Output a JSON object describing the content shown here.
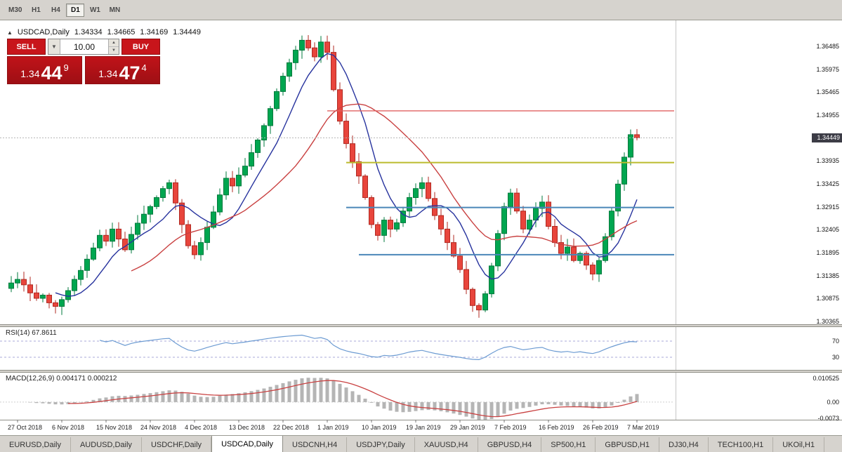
{
  "colors": {
    "up": "#00a650",
    "up_edge": "#007a3c",
    "down": "#e8453c",
    "down_edge": "#b02a22",
    "ma_fast": "#27339e",
    "ma_slow": "#c94141",
    "line_red": "#e06060",
    "line_yellow": "#bcbc2e",
    "line_blue": "#4a86b8",
    "rsi_line": "#6c9bd2",
    "level_dash": "#a8a8d8",
    "macd_hist": "#b5b5b5",
    "macd_signal": "#c94141",
    "bid_dash": "#b4b4b4",
    "tick": "#777777"
  },
  "toolbar": {
    "timeframes": [
      "M30",
      "H1",
      "H4",
      "D1",
      "W1",
      "MN"
    ],
    "active": "D1"
  },
  "quote_panel": {
    "collapse_icon": "▲",
    "symbol_title": "USDCAD,Daily",
    "ohlc": {
      "open": "1.34334",
      "high": "1.34665",
      "low": "1.34169",
      "close": "1.34449"
    },
    "sell_label": "SELL",
    "buy_label": "BUY",
    "volume_value": "10.00",
    "volume_dropdown_icon": "▼",
    "volume_up_icon": "▲",
    "volume_down_icon": "▼",
    "sell_price": {
      "base": "1.34",
      "pips": "44",
      "pip_sup": "9"
    },
    "buy_price": {
      "base": "1.34",
      "pips": "47",
      "pip_sup": "4"
    }
  },
  "tabs": {
    "items": [
      "EURUSD,Daily",
      "AUDUSD,Daily",
      "USDCHF,Daily",
      "USDCAD,Daily",
      "USDCNH,H4",
      "USDJPY,Daily",
      "XAUUSD,H4",
      "GBPUSD,H4",
      "SP500,H1",
      "GBPUSD,H1",
      "DJ30,H4",
      "TECH100,H1",
      "UKOil,H1"
    ],
    "active": "USDCAD,Daily"
  },
  "chart_data": {
    "type": "candlestick",
    "symbol": "USDCAD",
    "timeframe": "Daily",
    "ohlc_current": {
      "open": 1.34334,
      "high": 1.34665,
      "low": 1.34169,
      "close": 1.34449
    },
    "first_open": 1.311,
    "closes": [
      1.3122,
      1.313,
      1.3118,
      1.31,
      1.3088,
      1.3095,
      1.3078,
      1.307,
      1.3085,
      1.3105,
      1.313,
      1.315,
      1.3175,
      1.32,
      1.3228,
      1.3215,
      1.3242,
      1.322,
      1.3196,
      1.323,
      1.3255,
      1.3275,
      1.3292,
      1.3312,
      1.3332,
      1.3345,
      1.33,
      1.3252,
      1.3205,
      1.3185,
      1.3212,
      1.3246,
      1.328,
      1.3318,
      1.3355,
      1.3338,
      1.3362,
      1.3382,
      1.3412,
      1.344,
      1.3472,
      1.351,
      1.3548,
      1.3582,
      1.3612,
      1.364,
      1.3662,
      1.3645,
      1.3625,
      1.3658,
      1.3635,
      1.3552,
      1.3482,
      1.3432,
      1.3392,
      1.336,
      1.3312,
      1.3252,
      1.3228,
      1.3262,
      1.3242,
      1.3256,
      1.3282,
      1.3312,
      1.3332,
      1.3345,
      1.331,
      1.3272,
      1.3242,
      1.3212,
      1.3182,
      1.3152,
      1.3108,
      1.3072,
      1.3062,
      1.3098,
      1.316,
      1.3232,
      1.3292,
      1.3322,
      1.3282,
      1.3242,
      1.3262,
      1.3288,
      1.3302,
      1.3248,
      1.3212,
      1.3188,
      1.3202,
      1.3172,
      1.3188,
      1.3162,
      1.3142,
      1.3172,
      1.3225,
      1.3282,
      1.3342,
      1.3402,
      1.3452,
      1.34449
    ],
    "ma": [
      {
        "period": 8,
        "color_key": "ma_fast"
      },
      {
        "period": 20,
        "color_key": "ma_slow"
      }
    ],
    "hlines": [
      {
        "price": 1.3505,
        "from_i": 50,
        "color_key": "line_red",
        "w": 1.4
      },
      {
        "price": 1.339,
        "from_i": 53,
        "color_key": "line_yellow",
        "w": 2
      },
      {
        "price": 1.329,
        "from_i": 53,
        "color_key": "line_blue",
        "w": 2
      },
      {
        "price": 1.3185,
        "from_i": 55,
        "color_key": "line_blue",
        "w": 2
      }
    ],
    "bid": {
      "label": "1.34449",
      "value": 1.34449
    },
    "y_ticks": [
      {
        "label": "1.36485",
        "value": 1.36485
      },
      {
        "label": "1.35975",
        "value": 1.35975
      },
      {
        "label": "1.35465",
        "value": 1.35465
      },
      {
        "label": "1.34955",
        "value": 1.34955
      },
      {
        "label": "1.33935",
        "value": 1.33935
      },
      {
        "label": "1.33425",
        "value": 1.33425
      },
      {
        "label": "1.32915",
        "value": 1.32915
      },
      {
        "label": "1.32405",
        "value": 1.32405
      },
      {
        "label": "1.31895",
        "value": 1.31895
      },
      {
        "label": "1.31385",
        "value": 1.31385
      },
      {
        "label": "1.30875",
        "value": 1.30875
      },
      {
        "label": "1.30365",
        "value": 1.30365
      }
    ],
    "x_ticks": [
      {
        "label": "27 Oct 2018",
        "index": 1
      },
      {
        "label": "6 Nov 2018",
        "index": 8
      },
      {
        "label": "15 Nov 2018",
        "index": 15
      },
      {
        "label": "24 Nov 2018",
        "index": 22
      },
      {
        "label": "4 Dec 2018",
        "index": 29
      },
      {
        "label": "13 Dec 2018",
        "index": 36
      },
      {
        "label": "22 Dec 2018",
        "index": 43
      },
      {
        "label": "1 Jan 2019",
        "index": 50
      },
      {
        "label": "10 Jan 2019",
        "index": 57
      },
      {
        "label": "19 Jan 2019",
        "index": 64
      },
      {
        "label": "29 Jan 2019",
        "index": 71
      },
      {
        "label": "7 Feb 2019",
        "index": 78
      },
      {
        "label": "16 Feb 2019",
        "index": 85
      },
      {
        "label": "26 Feb 2019",
        "index": 92
      },
      {
        "label": "7 Mar 2019",
        "index": 99
      }
    ],
    "indicators": {
      "rsi": {
        "title": "RSI(14) 67.8611",
        "period": 14,
        "value": 67.8611,
        "levels": [
          {
            "label": "70",
            "value": 70
          },
          {
            "label": "30",
            "value": 30
          }
        ]
      },
      "macd": {
        "title": "MACD(12,26,9) 0.004171 0.000212",
        "fast": 12,
        "slow": 26,
        "signal": 9,
        "main": 0.004171,
        "signal_value": 0.000212,
        "y_ticks": [
          {
            "label": "0.010525",
            "value": 0.010525
          },
          {
            "label": "0.00",
            "value": 0
          },
          {
            "label": "-0.0073",
            "value": -0.0073
          }
        ]
      }
    }
  }
}
